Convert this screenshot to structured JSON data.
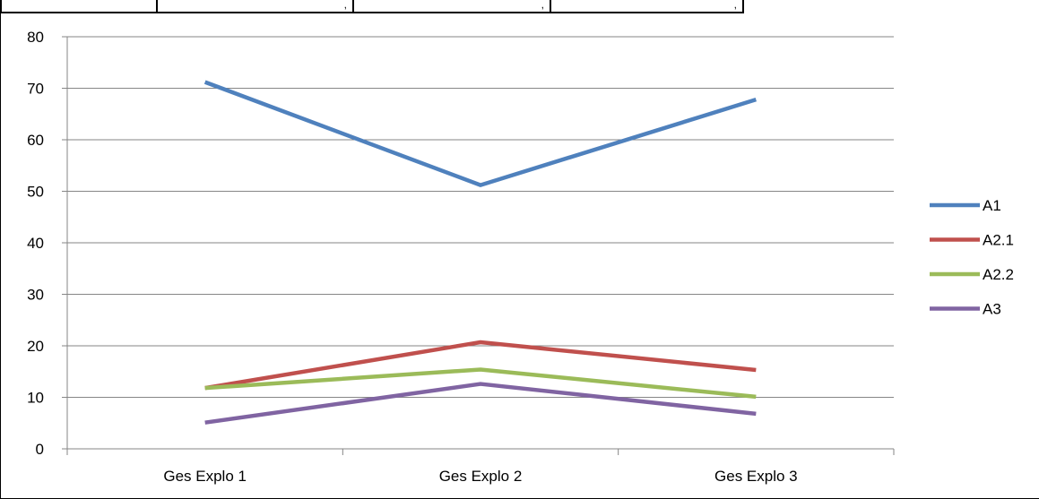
{
  "table_strip": {
    "cells": [
      {
        "text": ""
      },
      {
        "text": ","
      },
      {
        "text": ","
      },
      {
        "text": ","
      }
    ]
  },
  "chart_data": {
    "type": "line",
    "title": "",
    "xlabel": "",
    "ylabel": "",
    "categories": [
      "Ges Explo 1",
      "Ges Explo 2",
      "Ges Explo 3"
    ],
    "ylim": [
      0,
      80
    ],
    "yticks": [
      0,
      10,
      20,
      30,
      40,
      50,
      60,
      70,
      80
    ],
    "grid": "horizontal",
    "legend_position": "right",
    "series": [
      {
        "name": "A1",
        "color": "#4f81bd",
        "values": [
          71.2,
          51.2,
          67.8
        ]
      },
      {
        "name": "A2.1",
        "color": "#c0504d",
        "values": [
          11.8,
          20.7,
          15.3
        ]
      },
      {
        "name": "A2.2",
        "color": "#9bbb59",
        "values": [
          11.8,
          15.4,
          10.1
        ]
      },
      {
        "name": "A3",
        "color": "#8064a2",
        "values": [
          5.1,
          12.6,
          6.8
        ]
      }
    ]
  }
}
